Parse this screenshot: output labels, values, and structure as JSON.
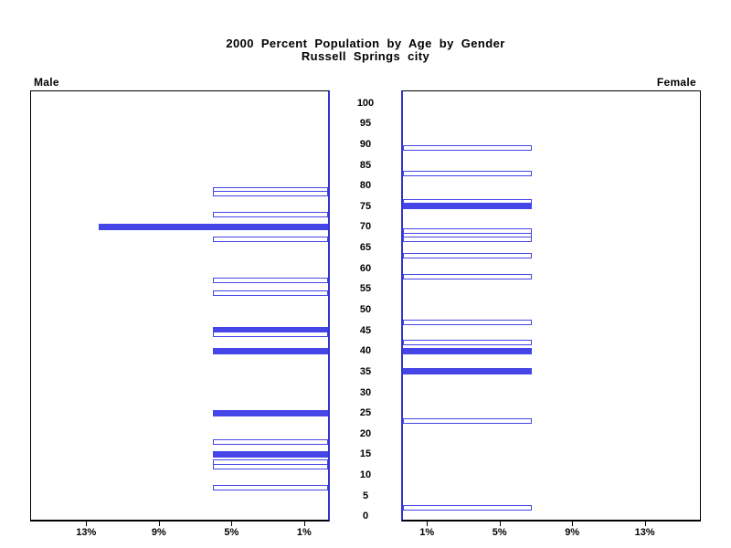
{
  "title": {
    "line1": "2000 Percent Population by Age by Gender",
    "line2": "Russell Springs city"
  },
  "panel_labels": {
    "left": "Male",
    "right": "Female"
  },
  "colors": {
    "bar_blue": "#4545e8",
    "axis_blue": "#3434cd",
    "frame": "#000000"
  },
  "chart_data": {
    "type": "bar",
    "variant": "population-pyramid",
    "title": "2000 Percent Population by Age by Gender — Russell Springs city",
    "age_axis": {
      "min": 0,
      "max": 100,
      "step": 5,
      "labels": [
        "0",
        "5",
        "10",
        "15",
        "20",
        "25",
        "30",
        "35",
        "40",
        "45",
        "50",
        "55",
        "60",
        "65",
        "70",
        "75",
        "80",
        "85",
        "90",
        "95",
        "100"
      ]
    },
    "pct_axis": {
      "ticks": [
        1,
        5,
        9,
        13
      ],
      "labels": [
        "1%",
        "5%",
        "9%",
        "13%"
      ]
    },
    "series": [
      {
        "name": "Male",
        "side": "left",
        "bars": [
          {
            "age": 79,
            "pct": 5.9,
            "fill": "outline"
          },
          {
            "age": 78,
            "pct": 5.9,
            "fill": "outline"
          },
          {
            "age": 73,
            "pct": 5.9,
            "fill": "outline"
          },
          {
            "age": 70,
            "pct": 12.2,
            "fill": "solid"
          },
          {
            "age": 67,
            "pct": 5.9,
            "fill": "outline"
          },
          {
            "age": 57,
            "pct": 5.9,
            "fill": "outline"
          },
          {
            "age": 54,
            "pct": 5.9,
            "fill": "outline"
          },
          {
            "age": 45,
            "pct": 5.9,
            "fill": "solid"
          },
          {
            "age": 44,
            "pct": 5.9,
            "fill": "outline"
          },
          {
            "age": 40,
            "pct": 5.9,
            "fill": "solid"
          },
          {
            "age": 25,
            "pct": 5.9,
            "fill": "solid"
          },
          {
            "age": 18,
            "pct": 5.9,
            "fill": "outline"
          },
          {
            "age": 15,
            "pct": 5.9,
            "fill": "solid"
          },
          {
            "age": 13,
            "pct": 5.9,
            "fill": "outline"
          },
          {
            "age": 12,
            "pct": 5.9,
            "fill": "outline"
          },
          {
            "age": 7,
            "pct": 5.9,
            "fill": "outline"
          }
        ]
      },
      {
        "name": "Female",
        "side": "right",
        "bars": [
          {
            "age": 89,
            "pct": 6.7,
            "fill": "outline"
          },
          {
            "age": 83,
            "pct": 6.7,
            "fill": "outline"
          },
          {
            "age": 76,
            "pct": 6.7,
            "fill": "outline"
          },
          {
            "age": 75,
            "pct": 6.7,
            "fill": "solid"
          },
          {
            "age": 69,
            "pct": 6.7,
            "fill": "outline"
          },
          {
            "age": 68,
            "pct": 6.7,
            "fill": "outline"
          },
          {
            "age": 67,
            "pct": 6.7,
            "fill": "outline"
          },
          {
            "age": 63,
            "pct": 6.7,
            "fill": "outline"
          },
          {
            "age": 58,
            "pct": 6.7,
            "fill": "outline"
          },
          {
            "age": 47,
            "pct": 6.7,
            "fill": "outline"
          },
          {
            "age": 42,
            "pct": 6.7,
            "fill": "outline"
          },
          {
            "age": 40,
            "pct": 6.7,
            "fill": "solid"
          },
          {
            "age": 35,
            "pct": 6.7,
            "fill": "solid"
          },
          {
            "age": 23,
            "pct": 6.7,
            "fill": "outline"
          },
          {
            "age": 2,
            "pct": 6.7,
            "fill": "outline"
          }
        ]
      }
    ]
  }
}
